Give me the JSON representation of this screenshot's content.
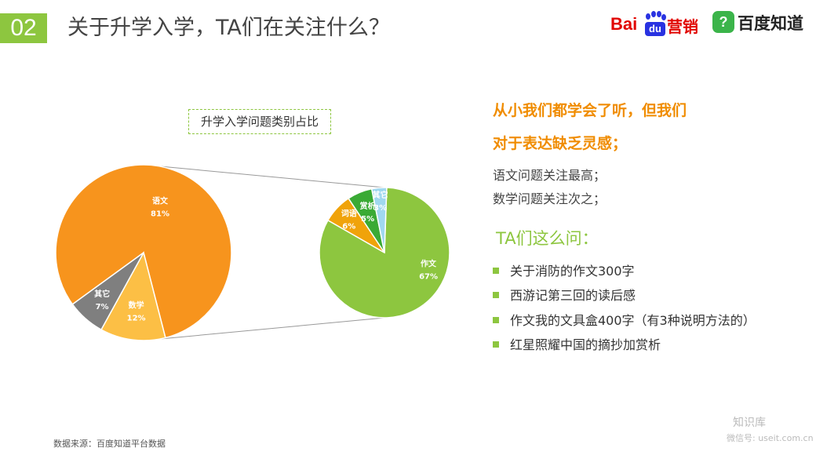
{
  "header": {
    "section_number": "02",
    "title": "关于升学入学，TA们在关注什么？",
    "logo_baidu_text": "Bai",
    "logo_baidu_du": "du",
    "logo_baidu_suffix": "营销",
    "logo_zhidao_mark": "?",
    "logo_zhidao_text": "百度知道"
  },
  "chart_data": [
    {
      "type": "pie",
      "title": "升学入学问题类别占比",
      "slices": [
        {
          "label": "语文",
          "value": 81,
          "display": "81%",
          "color": "#f7941d"
        },
        {
          "label": "数学",
          "value": 12,
          "display": "12%",
          "color": "#fcbf45"
        },
        {
          "label": "其它",
          "value": 7,
          "display": "7%",
          "color": "#7f7f7f"
        }
      ]
    },
    {
      "type": "pie",
      "title": "",
      "slices": [
        {
          "label": "作文",
          "value": 67,
          "display": "67%",
          "color": "#8dc63f"
        },
        {
          "label": "词语",
          "value": 6,
          "display": "6%",
          "color": "#f0a30a"
        },
        {
          "label": "赏析",
          "value": 5,
          "display": "5%",
          "color": "#3aaa35"
        },
        {
          "label": "其它",
          "value": 3,
          "display": "3%",
          "color": "#a0d8ef"
        }
      ]
    }
  ],
  "insights": {
    "headline_1": "从小我们都学会了听，但我们",
    "headline_2": "对于表达缺乏灵感；",
    "line_1": "语文问题关注最高；",
    "line_2": "数学问题关注次之；",
    "subheading": "TA们这么问：",
    "questions": [
      "关于消防的作文300字",
      "西游记第三回的读后感",
      "作文我的文具盒400字（有3种说明方法的）",
      "红星照耀中国的摘抄加赏析"
    ]
  },
  "footer": {
    "source": "数据来源：百度知道平台数据",
    "watermark_name": "知识库",
    "watermark_id": "微信号: useit.com.cn"
  }
}
